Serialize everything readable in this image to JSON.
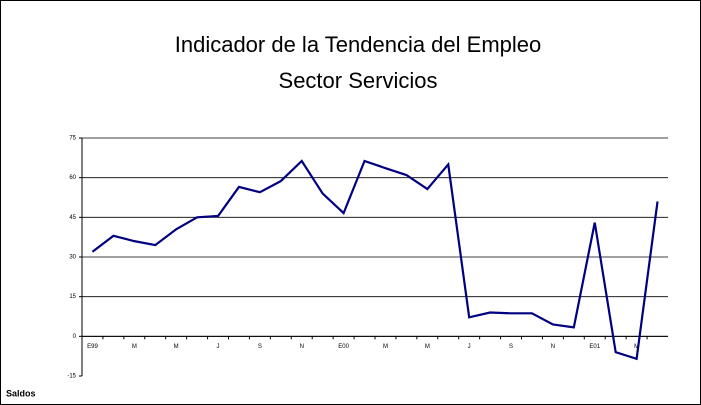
{
  "chart_data": {
    "type": "line",
    "title": "Indicador de la Tendencia del Empleo",
    "subtitle": "Sector Servicios",
    "y_label": "Saldos",
    "categories": [
      "E99",
      null,
      "M",
      null,
      "M",
      null,
      "J",
      null,
      "S",
      null,
      "N",
      null,
      "E00",
      null,
      "M",
      null,
      "M",
      null,
      "J",
      null,
      "S",
      null,
      "N",
      null,
      "E01",
      null,
      "M",
      null
    ],
    "series": [
      {
        "name": "Saldos",
        "color": "#000080",
        "values": [
          32,
          38,
          36,
          34.5,
          40.5,
          45,
          45.5,
          56.5,
          54.5,
          58.7,
          66.3,
          54,
          46.6,
          66.3,
          63.6,
          61,
          55.7,
          65,
          7.2,
          9,
          8.7,
          8.7,
          4.5,
          3.4,
          43,
          -6,
          -8.5,
          51
        ]
      }
    ],
    "ylim": [
      -15,
      75
    ],
    "yticks": [
      -15,
      0,
      15,
      30,
      45,
      60,
      75
    ],
    "grid": true
  }
}
